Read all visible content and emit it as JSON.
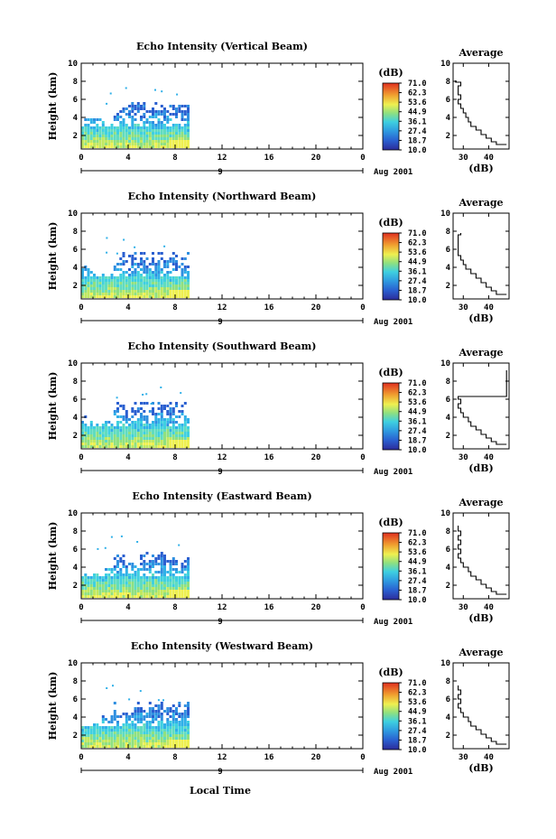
{
  "chart_data": [
    {
      "type": "heatmap",
      "title": "Echo Intensity (Vertical Beam)",
      "ylabel": "Height (km)",
      "xticks": [
        "0",
        "4",
        "8",
        "12",
        "16",
        "20",
        "0"
      ],
      "yticks": [
        "2",
        "4",
        "6",
        "8",
        "10"
      ],
      "xlim": [
        0,
        24
      ],
      "ylim": [
        0.5,
        10
      ],
      "date_left": "9",
      "date_right": "Aug 2001",
      "colorbar": {
        "unit": "(dB)",
        "ticks": [
          "71.0",
          "62.3",
          "53.6",
          "44.9",
          "36.1",
          "27.4",
          "18.7",
          "10.0"
        ]
      },
      "profile": {
        "title": "Average",
        "xlabel": "(dB)",
        "xticks": [
          "30",
          "40"
        ],
        "xlim": [
          26,
          48
        ],
        "points": [
          [
            47,
            1.0
          ],
          [
            43,
            1.3
          ],
          [
            41,
            1.7
          ],
          [
            39,
            2.1
          ],
          [
            37,
            2.6
          ],
          [
            35,
            3.0
          ],
          [
            33,
            3.5
          ],
          [
            32,
            4.0
          ],
          [
            31,
            4.5
          ],
          [
            30,
            5.0
          ],
          [
            29,
            5.5
          ],
          [
            28,
            6.0
          ],
          [
            29,
            6.5
          ],
          [
            28,
            7.0
          ],
          [
            28,
            7.5
          ],
          [
            29,
            7.9
          ],
          [
            27,
            8.1
          ]
        ]
      }
    },
    {
      "type": "heatmap",
      "title": "Echo Intensity (Northward Beam)",
      "ylabel": "Height (km)",
      "xticks": [
        "0",
        "4",
        "8",
        "12",
        "16",
        "20",
        "0"
      ],
      "yticks": [
        "2",
        "4",
        "6",
        "8",
        "10"
      ],
      "xlim": [
        0,
        24
      ],
      "ylim": [
        0.5,
        10
      ],
      "date_left": "9",
      "date_right": "Aug 2001",
      "colorbar": {
        "unit": "(dB)",
        "ticks": [
          "71.0",
          "62.3",
          "53.6",
          "44.9",
          "36.1",
          "27.4",
          "18.7",
          "10.0"
        ]
      },
      "profile": {
        "title": "Average",
        "xlabel": "(dB)",
        "xticks": [
          "30",
          "40"
        ],
        "xlim": [
          26,
          48
        ],
        "points": [
          [
            47,
            1.0
          ],
          [
            43,
            1.4
          ],
          [
            41,
            1.8
          ],
          [
            39,
            2.3
          ],
          [
            37,
            2.8
          ],
          [
            35,
            3.3
          ],
          [
            33,
            3.8
          ],
          [
            31,
            4.3
          ],
          [
            30,
            4.8
          ],
          [
            29,
            5.3
          ],
          [
            28,
            5.8
          ],
          [
            28,
            6.3
          ],
          [
            28,
            7.6
          ],
          [
            29,
            7.8
          ]
        ]
      }
    },
    {
      "type": "heatmap",
      "title": "Echo Intensity (Southward Beam)",
      "ylabel": "Height (km)",
      "xticks": [
        "0",
        "4",
        "8",
        "12",
        "16",
        "20",
        "0"
      ],
      "yticks": [
        "2",
        "4",
        "6",
        "8",
        "10"
      ],
      "xlim": [
        0,
        24
      ],
      "ylim": [
        0.5,
        10
      ],
      "date_left": "9",
      "date_right": "Aug 2001",
      "colorbar": {
        "unit": "(dB)",
        "ticks": [
          "71.0",
          "62.3",
          "53.6",
          "44.9",
          "36.1",
          "27.4",
          "18.7",
          "10.0"
        ]
      },
      "profile": {
        "title": "Average",
        "xlabel": "(dB)",
        "xticks": [
          "30",
          "40"
        ],
        "xlim": [
          26,
          48
        ],
        "points": [
          [
            47,
            1.0
          ],
          [
            43,
            1.3
          ],
          [
            41,
            1.7
          ],
          [
            39,
            2.1
          ],
          [
            37,
            2.6
          ],
          [
            35,
            3.0
          ],
          [
            33,
            3.5
          ],
          [
            32,
            4.0
          ],
          [
            30,
            4.5
          ],
          [
            29,
            5.0
          ],
          [
            28,
            5.5
          ],
          [
            29,
            6.0
          ],
          [
            28,
            6.3
          ],
          [
            47,
            9.2
          ]
        ]
      }
    },
    {
      "type": "heatmap",
      "title": "Echo Intensity (Eastward Beam)",
      "ylabel": "Height (km)",
      "xticks": [
        "0",
        "4",
        "8",
        "12",
        "16",
        "20",
        "0"
      ],
      "yticks": [
        "2",
        "4",
        "6",
        "8",
        "10"
      ],
      "xlim": [
        0,
        24
      ],
      "ylim": [
        0.5,
        10
      ],
      "date_left": "9",
      "date_right": "Aug 2001",
      "colorbar": {
        "unit": "(dB)",
        "ticks": [
          "71.0",
          "62.3",
          "53.6",
          "44.9",
          "36.1",
          "27.4",
          "18.7",
          "10.0"
        ]
      },
      "profile": {
        "title": "Average",
        "xlabel": "(dB)",
        "xticks": [
          "30",
          "40"
        ],
        "xlim": [
          26,
          48
        ],
        "points": [
          [
            47,
            1.0
          ],
          [
            43,
            1.3
          ],
          [
            41,
            1.7
          ],
          [
            39,
            2.1
          ],
          [
            37,
            2.6
          ],
          [
            35,
            3.0
          ],
          [
            33,
            3.5
          ],
          [
            32,
            4.0
          ],
          [
            30,
            4.5
          ],
          [
            29,
            5.0
          ],
          [
            28,
            5.5
          ],
          [
            29,
            6.0
          ],
          [
            28,
            6.5
          ],
          [
            29,
            7.0
          ],
          [
            28,
            7.5
          ],
          [
            29,
            8.0
          ],
          [
            28,
            8.6
          ]
        ]
      }
    },
    {
      "type": "heatmap",
      "title": "Echo Intensity (Westward Beam)",
      "ylabel": "Height (km)",
      "xticks": [
        "0",
        "4",
        "8",
        "12",
        "16",
        "20",
        "0"
      ],
      "yticks": [
        "2",
        "4",
        "6",
        "8",
        "10"
      ],
      "xlim": [
        0,
        24
      ],
      "ylim": [
        0.5,
        10
      ],
      "date_left": "9",
      "date_right": "Aug 2001",
      "colorbar": {
        "unit": "(dB)",
        "ticks": [
          "71.0",
          "62.3",
          "53.6",
          "44.9",
          "36.1",
          "27.4",
          "18.7",
          "10.0"
        ]
      },
      "profile": {
        "title": "Average",
        "xlabel": "(dB)",
        "xticks": [
          "30",
          "40"
        ],
        "xlim": [
          26,
          48
        ],
        "points": [
          [
            47,
            1.0
          ],
          [
            43,
            1.3
          ],
          [
            41,
            1.7
          ],
          [
            39,
            2.1
          ],
          [
            37,
            2.6
          ],
          [
            35,
            3.0
          ],
          [
            33,
            3.5
          ],
          [
            32,
            4.0
          ],
          [
            30,
            4.5
          ],
          [
            29,
            5.0
          ],
          [
            28,
            5.5
          ],
          [
            29,
            6.0
          ],
          [
            28,
            6.5
          ],
          [
            29,
            7.0
          ],
          [
            28,
            7.5
          ]
        ]
      }
    }
  ],
  "xlabel": "Local Time"
}
